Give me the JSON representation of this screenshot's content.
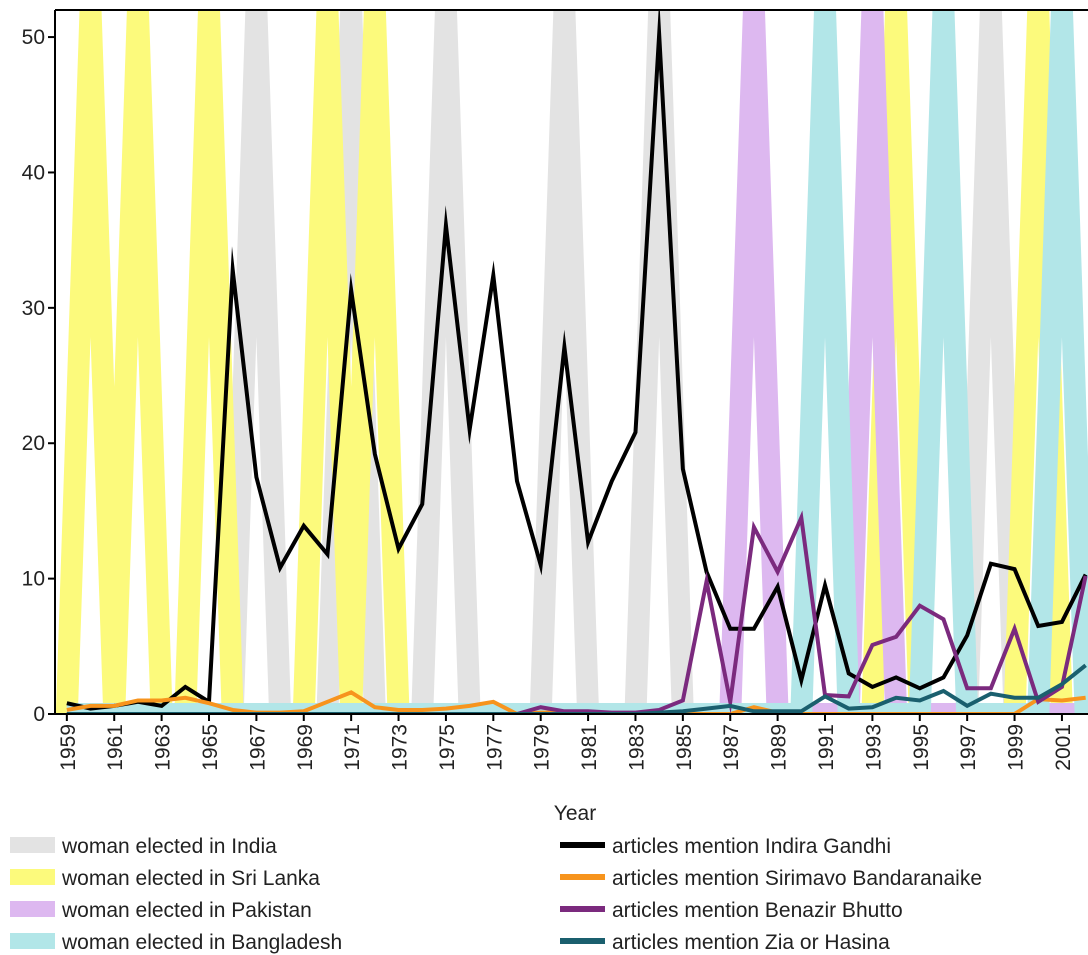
{
  "chart_data": {
    "type": "line",
    "x_label": "Year",
    "x": [
      1959,
      1960,
      1961,
      1962,
      1963,
      1964,
      1965,
      1966,
      1967,
      1968,
      1969,
      1970,
      1971,
      1972,
      1973,
      1974,
      1975,
      1976,
      1977,
      1978,
      1979,
      1980,
      1981,
      1982,
      1983,
      1984,
      1985,
      1986,
      1987,
      1988,
      1989,
      1990,
      1991,
      1992,
      1993,
      1994,
      1995,
      1996,
      1997,
      1998,
      1999,
      2000,
      2001,
      2002
    ],
    "xlim": [
      1958.5,
      2002.1
    ],
    "xticks": [
      1959,
      1961,
      1963,
      1965,
      1967,
      1969,
      1971,
      1973,
      1975,
      1977,
      1979,
      1981,
      1983,
      1985,
      1987,
      1989,
      1991,
      1993,
      1995,
      1997,
      1999,
      2001
    ],
    "ylim": [
      0,
      52
    ],
    "yticks": [
      0,
      10,
      20,
      30,
      40,
      50
    ],
    "y2lim": [
      0,
      1
    ],
    "series": [
      {
        "name": "woman elected in India",
        "color": "#e3e3e3",
        "axis": "y2",
        "values": [
          0,
          0,
          0,
          0,
          0,
          0,
          0,
          0,
          1,
          0,
          0,
          0,
          1,
          0,
          0,
          0,
          1,
          0,
          0,
          0,
          0,
          1,
          0,
          0,
          0,
          1,
          0,
          0,
          0,
          0,
          0,
          0,
          0,
          0,
          0,
          0,
          0,
          0,
          0,
          1,
          0,
          0,
          0,
          0
        ]
      },
      {
        "name": "woman elected in Sri Lanka",
        "color": "#fcfa7c",
        "axis": "y2",
        "values": [
          0,
          1,
          0,
          1,
          0,
          0,
          1,
          0,
          0,
          0,
          0,
          1,
          0,
          1,
          0,
          0,
          0,
          0,
          0,
          0,
          0,
          0,
          0,
          0,
          0,
          0,
          0,
          0,
          0,
          0,
          0,
          0,
          0,
          0,
          0,
          1,
          0,
          0,
          0,
          0,
          0,
          1,
          0,
          0
        ]
      },
      {
        "name": "woman elected in Pakistan",
        "color": "#ddb8f0",
        "axis": "y2",
        "values": [
          0,
          0,
          0,
          0,
          0,
          0,
          0,
          0,
          0,
          0,
          0,
          0,
          0,
          0,
          0,
          0,
          0,
          0,
          0,
          0,
          0,
          0,
          0,
          0,
          0,
          0,
          0,
          0,
          0,
          1,
          0,
          0,
          0,
          0,
          1,
          0,
          0,
          0,
          0,
          0,
          0,
          0,
          0,
          0
        ]
      },
      {
        "name": "woman elected in Bangladesh",
        "color": "#b2e6e8",
        "axis": "y2",
        "values": [
          0,
          0,
          0,
          0,
          0,
          0,
          0,
          0,
          0,
          0,
          0,
          0,
          0,
          0,
          0,
          0,
          0,
          0,
          0,
          0,
          0,
          0,
          0,
          0,
          0,
          0,
          0,
          0,
          0,
          0,
          0,
          0,
          1,
          0,
          0,
          0,
          0,
          1,
          0,
          0,
          0,
          0,
          1,
          0
        ]
      },
      {
        "name": "articles mention Indira Gandhi",
        "color": "#000000",
        "values": [
          0.8,
          0.4,
          0.6,
          0.9,
          0.6,
          2.0,
          0.9,
          32.8,
          17.5,
          10.8,
          13.9,
          11.8,
          31.3,
          19.2,
          12.2,
          15.5,
          36.1,
          21.0,
          32.4,
          17.2,
          11.0,
          27.1,
          12.7,
          17.2,
          20.8,
          50.2,
          18.1,
          10.5,
          6.3,
          6.3,
          9.4,
          2.5,
          9.5,
          3.0,
          2.0,
          2.7,
          1.9,
          2.7,
          5.8,
          11.1,
          10.7,
          6.5,
          6.8,
          10.3
        ]
      },
      {
        "name": "articles mention Sirimavo Bandaranaike",
        "color": "#f7941d",
        "values": [
          0.3,
          0.6,
          0.6,
          1.0,
          1.0,
          1.2,
          0.8,
          0.3,
          0.1,
          0.1,
          0.2,
          0.9,
          1.6,
          0.5,
          0.3,
          0.3,
          0.4,
          0.6,
          0.9,
          0,
          0.1,
          0.1,
          0.1,
          0,
          0,
          0,
          0,
          0,
          0,
          0.5,
          0.1,
          0,
          0,
          0,
          0,
          0,
          0,
          0,
          0,
          0,
          0,
          1.1,
          1.0,
          1.2
        ]
      },
      {
        "name": "articles mention Benazir Bhutto",
        "color": "#7b2a7e",
        "values": [
          0,
          0,
          0,
          0,
          0,
          0,
          0,
          0,
          0,
          0,
          0,
          0,
          0,
          0,
          0,
          0,
          0,
          0,
          0,
          0,
          0.5,
          0.2,
          0.2,
          0.1,
          0.1,
          0.3,
          1.0,
          9.8,
          0.9,
          13.8,
          10.5,
          14.5,
          1.4,
          1.3,
          5.1,
          5.7,
          8.0,
          7.0,
          1.9,
          1.9,
          6.3,
          0.9,
          2.0,
          10.2
        ]
      },
      {
        "name": "articles mention Zia or Hasina",
        "color": "#1a5f6e",
        "values": [
          0,
          0,
          0,
          0,
          0,
          0,
          0,
          0,
          0,
          0,
          0,
          0,
          0,
          0,
          0,
          0,
          0,
          0,
          0,
          0,
          0,
          0,
          0,
          0,
          0,
          0.1,
          0.2,
          0.4,
          0.6,
          0.2,
          0.2,
          0.2,
          1.3,
          0.4,
          0.5,
          1.2,
          1.0,
          1.7,
          0.6,
          1.5,
          1.2,
          1.2,
          2.2,
          3.6
        ]
      }
    ]
  }
}
